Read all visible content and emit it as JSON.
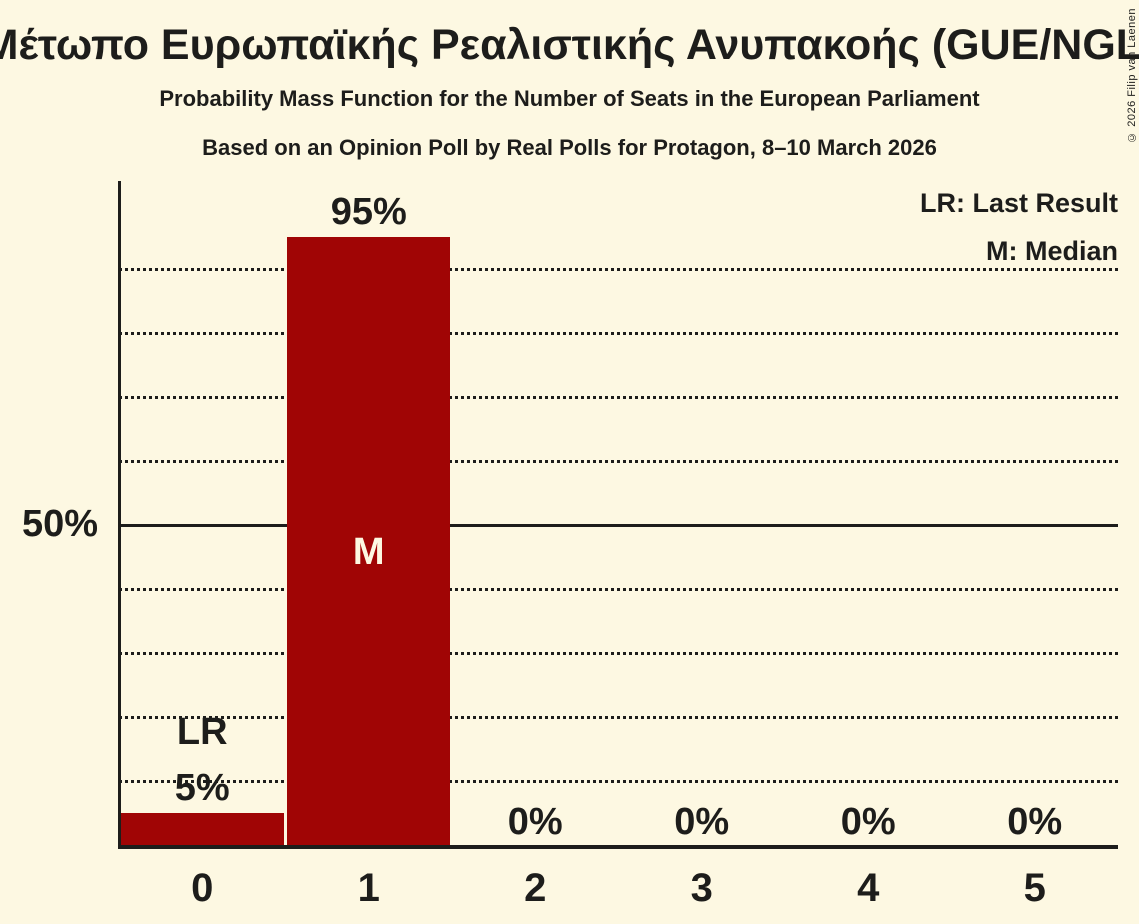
{
  "chart_data": {
    "type": "bar",
    "title": "Μέτωπο Ευρωπαϊκής Ρεαλιστικής Ανυπακοής (GUE/NGL)",
    "subtitle": "Probability Mass Function for the Number of Seats in the European Parliament",
    "source_line": "Based on an Opinion Poll by Real Polls for Protagon, 8–10 March 2026",
    "copyright": "© 2026 Filip van Laenen",
    "xlabel": "",
    "ylabel": "",
    "categories": [
      "0",
      "1",
      "2",
      "3",
      "4",
      "5"
    ],
    "values": [
      5,
      95,
      0,
      0,
      0,
      0
    ],
    "bar_labels": [
      "5%",
      "95%",
      "0%",
      "0%",
      "0%",
      "0%"
    ],
    "annotations": [
      {
        "category": "0",
        "label": "LR",
        "placement": "above-value-label"
      },
      {
        "category": "1",
        "label": "M",
        "placement": "inside"
      }
    ],
    "legend": [
      "LR: Last Result",
      "M: Median"
    ],
    "y_tick_labels": [
      "50%"
    ],
    "ylim": [
      0,
      100
    ],
    "gridlines_percent": [
      10,
      20,
      30,
      40,
      50,
      60,
      70,
      80,
      90
    ],
    "solid_gridline_percent": 50,
    "grid": "dotted-horizontal",
    "legend_position": "top-right",
    "colors": {
      "bar": "#A00505",
      "background": "#FDF8E2",
      "text": "#1D1D1B"
    }
  }
}
